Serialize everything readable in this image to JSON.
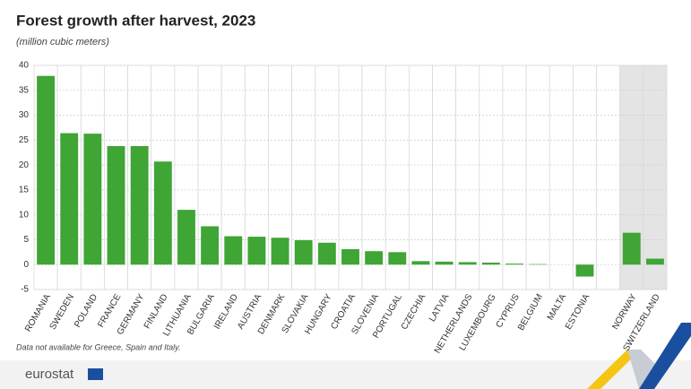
{
  "chart_data": {
    "type": "bar",
    "title": "Forest growth after harvest, 2023",
    "subtitle": "(million cubic meters)",
    "categories": [
      "ROMANIA",
      "SWEDEN",
      "POLAND",
      "FRANCE",
      "GERMANY",
      "FINLAND",
      "LITHUANIA",
      "BULGARIA",
      "IRELAND",
      "AUSTRIA",
      "DENMARK",
      "SLOVAKIA",
      "HUNGARY",
      "CROATIA",
      "SLOVENIA",
      "PORTUGAL",
      "CZECHIA",
      "LATVIA",
      "NETHERLANDS",
      "LUXEMBOURG",
      "CYPRUS",
      "BELGIUM",
      "MALTA",
      "ESTONIA",
      "NORWAY",
      "SWITZERLAND"
    ],
    "values": [
      37.9,
      26.4,
      26.3,
      23.8,
      23.8,
      20.7,
      11.0,
      7.7,
      5.7,
      5.6,
      5.4,
      4.9,
      4.4,
      3.1,
      2.7,
      2.5,
      0.7,
      0.6,
      0.5,
      0.4,
      0.2,
      0.1,
      0,
      -2.4,
      6.4,
      1.2
    ],
    "color": "#3fa535",
    "ylim": [
      -5,
      40
    ],
    "yticks": [
      -5,
      0,
      5,
      10,
      15,
      20,
      25,
      30,
      35,
      40
    ],
    "grid": true
  },
  "footnote": "Data not available for Greece, Spain and Italy.",
  "logo": "eurostat"
}
